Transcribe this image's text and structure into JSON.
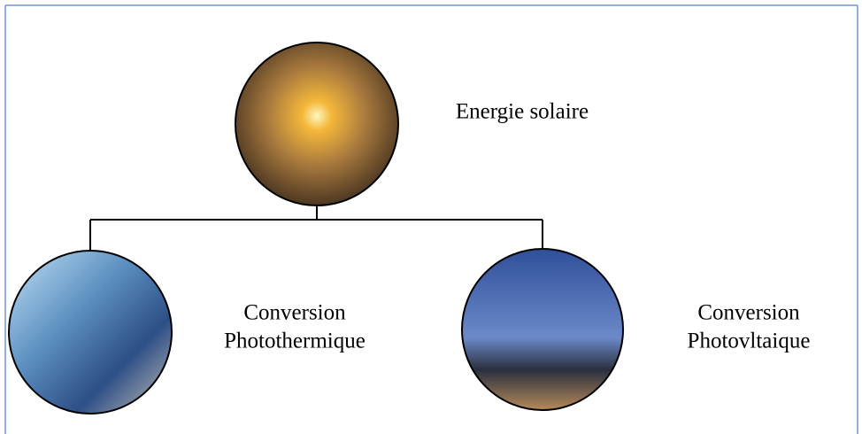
{
  "nodes": [
    {
      "label_lines": [
        "Energie solaire"
      ]
    },
    {
      "label_lines": [
        "Conversion",
        "Photothermique"
      ]
    },
    {
      "label_lines": [
        "Conversion",
        "Photovltaique"
      ]
    }
  ]
}
